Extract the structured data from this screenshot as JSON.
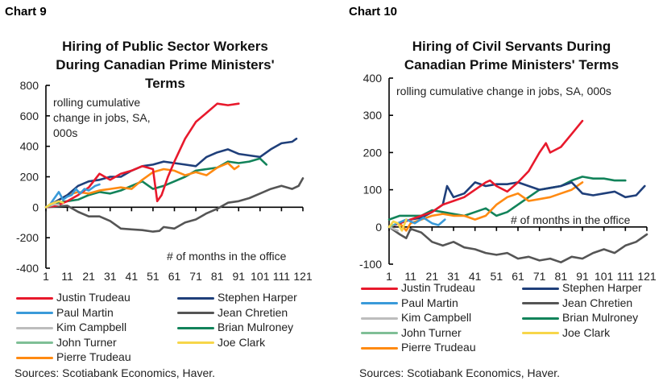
{
  "charts": [
    {
      "label": "Chart 9",
      "title_lines": [
        "Hiring of Public Sector Workers",
        "During Canadian Prime Ministers'",
        "Terms"
      ],
      "annotation_lines": [
        "rolling cumulative",
        "change in jobs, SA,",
        "000s"
      ],
      "xaxis_note": "# of months in the office",
      "source": "Sources: Scotiabank Economics, Haver."
    },
    {
      "label": "Chart 10",
      "title_lines": [
        "Hiring of Civil Servants During",
        "Canadian Prime Ministers' Terms"
      ],
      "annotation_lines": [
        "rolling cumulative change in jobs, SA, 000s"
      ],
      "xaxis_note": "# of months in the office",
      "source": "Sources: Scotiabank Economics, Haver."
    }
  ],
  "legend": [
    {
      "name": "Justin Trudeau",
      "color": "#e8192c"
    },
    {
      "name": "Stephen Harper",
      "color": "#1f3f7a"
    },
    {
      "name": "Paul Martin",
      "color": "#3a9ad9"
    },
    {
      "name": "Jean Chretien",
      "color": "#555555"
    },
    {
      "name": "Kim Campbell",
      "color": "#bdbdbd"
    },
    {
      "name": "Brian Mulroney",
      "color": "#12835a"
    },
    {
      "name": "John Turner",
      "color": "#7fbf96"
    },
    {
      "name": "Joe Clark",
      "color": "#f7d64a"
    },
    {
      "name": "Pierre Trudeau",
      "color": "#ff8a12"
    }
  ],
  "chart_data": [
    {
      "type": "line",
      "title": "Hiring of Public Sector Workers During Canadian Prime Ministers' Terms",
      "xlabel": "# of months in the office",
      "ylabel": "rolling cumulative change in jobs, SA, 000s",
      "xticks": [
        1,
        11,
        21,
        31,
        41,
        51,
        61,
        71,
        81,
        91,
        101,
        111,
        121
      ],
      "yticks": [
        -400,
        -200,
        0,
        200,
        400,
        600,
        800
      ],
      "ylim": [
        -400,
        800
      ],
      "xlim": [
        1,
        121
      ],
      "series": [
        {
          "name": "Jean Chretien",
          "x": [
            1,
            6,
            11,
            16,
            21,
            26,
            31,
            36,
            41,
            46,
            51,
            54,
            56,
            61,
            66,
            71,
            76,
            81,
            86,
            91,
            96,
            101,
            106,
            111,
            116,
            119,
            121
          ],
          "y": [
            0,
            5,
            10,
            -30,
            -60,
            -60,
            -90,
            -140,
            -145,
            -150,
            -160,
            -155,
            -130,
            -140,
            -100,
            -80,
            -40,
            -10,
            30,
            40,
            60,
            90,
            120,
            140,
            120,
            140,
            190
          ]
        },
        {
          "name": "Brian Mulroney",
          "x": [
            1,
            6,
            11,
            16,
            21,
            26,
            31,
            36,
            41,
            46,
            51,
            56,
            61,
            66,
            71,
            76,
            81,
            86,
            91,
            96,
            101,
            104
          ],
          "y": [
            0,
            30,
            40,
            50,
            80,
            100,
            90,
            110,
            140,
            170,
            120,
            140,
            170,
            200,
            240,
            250,
            260,
            300,
            290,
            300,
            320,
            280
          ]
        },
        {
          "name": "Pierre Trudeau",
          "x": [
            1,
            6,
            11,
            16,
            21,
            26,
            31,
            36,
            41,
            46,
            51,
            56,
            61,
            66,
            71,
            76,
            81,
            86,
            89,
            91
          ],
          "y": [
            0,
            40,
            80,
            100,
            90,
            110,
            120,
            130,
            120,
            180,
            230,
            250,
            240,
            210,
            230,
            210,
            260,
            290,
            250,
            270
          ]
        },
        {
          "name": "Stephen Harper",
          "x": [
            1,
            6,
            11,
            16,
            21,
            26,
            31,
            36,
            41,
            46,
            51,
            56,
            61,
            66,
            71,
            76,
            81,
            86,
            91,
            96,
            101,
            106,
            111,
            116,
            118
          ],
          "y": [
            0,
            40,
            80,
            140,
            170,
            180,
            200,
            200,
            240,
            270,
            280,
            300,
            290,
            280,
            270,
            330,
            360,
            380,
            350,
            340,
            330,
            380,
            420,
            430,
            450
          ]
        },
        {
          "name": "Justin Trudeau",
          "x": [
            1,
            6,
            11,
            16,
            21,
            26,
            31,
            36,
            41,
            46,
            51,
            53,
            55,
            58,
            61,
            66,
            71,
            76,
            81,
            86,
            91
          ],
          "y": [
            0,
            10,
            40,
            80,
            130,
            220,
            180,
            220,
            240,
            270,
            250,
            40,
            80,
            200,
            300,
            450,
            560,
            620,
            680,
            670,
            680
          ]
        },
        {
          "name": "Paul Martin",
          "x": [
            1,
            3,
            5,
            7,
            9,
            11,
            13,
            15,
            17,
            19,
            21,
            24,
            26
          ],
          "y": [
            0,
            20,
            60,
            100,
            50,
            70,
            80,
            120,
            90,
            120,
            110,
            140,
            150
          ]
        },
        {
          "name": "Kim Campbell",
          "x": [
            1,
            3,
            5,
            7
          ],
          "y": [
            0,
            10,
            20,
            15
          ]
        },
        {
          "name": "John Turner",
          "x": [
            1,
            3
          ],
          "y": [
            0,
            10
          ]
        },
        {
          "name": "Joe Clark",
          "x": [
            1,
            3,
            5,
            7,
            9
          ],
          "y": [
            0,
            20,
            30,
            40,
            30
          ]
        }
      ]
    },
    {
      "type": "line",
      "title": "Hiring of Civil Servants During Canadian Prime Ministers' Terms",
      "xlabel": "# of months in the office",
      "ylabel": "rolling cumulative change in jobs, SA, 000s",
      "xticks": [
        1,
        11,
        21,
        31,
        41,
        51,
        61,
        71,
        81,
        91,
        101,
        111,
        121
      ],
      "yticks": [
        -100,
        0,
        100,
        200,
        300,
        400
      ],
      "ylim": [
        -100,
        400
      ],
      "xlim": [
        1,
        121
      ],
      "series": [
        {
          "name": "Jean Chretien",
          "x": [
            1,
            6,
            9,
            11,
            16,
            21,
            26,
            31,
            36,
            41,
            46,
            51,
            56,
            61,
            66,
            71,
            76,
            81,
            86,
            91,
            96,
            101,
            106,
            111,
            116,
            121
          ],
          "y": [
            0,
            -20,
            -30,
            -5,
            -15,
            -40,
            -50,
            -40,
            -55,
            -60,
            -70,
            -75,
            -70,
            -85,
            -80,
            -90,
            -85,
            -95,
            -80,
            -85,
            -70,
            -60,
            -70,
            -50,
            -40,
            -20
          ]
        },
        {
          "name": "Brian Mulroney",
          "x": [
            1,
            6,
            11,
            16,
            21,
            26,
            31,
            36,
            41,
            46,
            51,
            56,
            61,
            66,
            71,
            76,
            81,
            86,
            91,
            96,
            101,
            106,
            111
          ],
          "y": [
            20,
            30,
            30,
            30,
            45,
            40,
            35,
            30,
            40,
            50,
            30,
            40,
            60,
            80,
            100,
            105,
            110,
            125,
            135,
            130,
            130,
            125,
            125
          ]
        },
        {
          "name": "Pierre Trudeau",
          "x": [
            1,
            6,
            9,
            11,
            16,
            21,
            26,
            31,
            36,
            41,
            46,
            51,
            56,
            61,
            66,
            71,
            76,
            81,
            86,
            91
          ],
          "y": [
            0,
            10,
            -10,
            10,
            20,
            30,
            35,
            30,
            30,
            20,
            30,
            60,
            80,
            90,
            70,
            75,
            80,
            90,
            100,
            120
          ]
        },
        {
          "name": "Stephen Harper",
          "x": [
            1,
            6,
            11,
            16,
            21,
            26,
            28,
            31,
            36,
            41,
            46,
            51,
            56,
            61,
            66,
            71,
            76,
            81,
            86,
            91,
            96,
            101,
            106,
            111,
            116,
            120
          ],
          "y": [
            0,
            10,
            20,
            25,
            40,
            60,
            110,
            80,
            90,
            120,
            110,
            115,
            115,
            120,
            110,
            100,
            105,
            110,
            120,
            90,
            85,
            90,
            95,
            80,
            85,
            110
          ]
        },
        {
          "name": "Justin Trudeau",
          "x": [
            1,
            6,
            11,
            16,
            21,
            26,
            31,
            36,
            41,
            46,
            48,
            51,
            56,
            61,
            66,
            71,
            74,
            76,
            81,
            86,
            91
          ],
          "y": [
            0,
            10,
            20,
            30,
            40,
            60,
            70,
            80,
            100,
            120,
            125,
            110,
            95,
            120,
            150,
            200,
            225,
            200,
            215,
            250,
            285
          ]
        },
        {
          "name": "Paul Martin",
          "x": [
            1,
            5,
            9,
            13,
            17,
            21,
            24,
            27
          ],
          "y": [
            0,
            10,
            20,
            10,
            25,
            10,
            5,
            20
          ]
        },
        {
          "name": "Kim Campbell",
          "x": [
            1,
            3,
            5
          ],
          "y": [
            0,
            -5,
            -10
          ]
        },
        {
          "name": "John Turner",
          "x": [
            1,
            3
          ],
          "y": [
            0,
            5
          ]
        },
        {
          "name": "Joe Clark",
          "x": [
            1,
            3,
            5,
            7,
            9
          ],
          "y": [
            0,
            15,
            10,
            -10,
            20
          ]
        }
      ]
    }
  ]
}
